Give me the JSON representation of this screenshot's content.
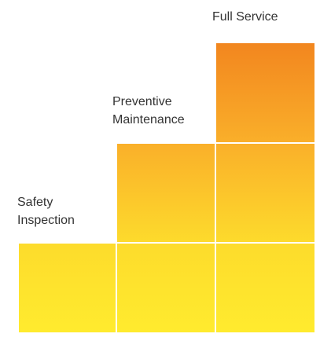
{
  "tiers": [
    {
      "label_lines": [
        "Safety",
        "Inspection"
      ]
    },
    {
      "label_lines": [
        "Preventive",
        "Maintenance"
      ]
    },
    {
      "label_lines": [
        "Full Service"
      ]
    }
  ]
}
